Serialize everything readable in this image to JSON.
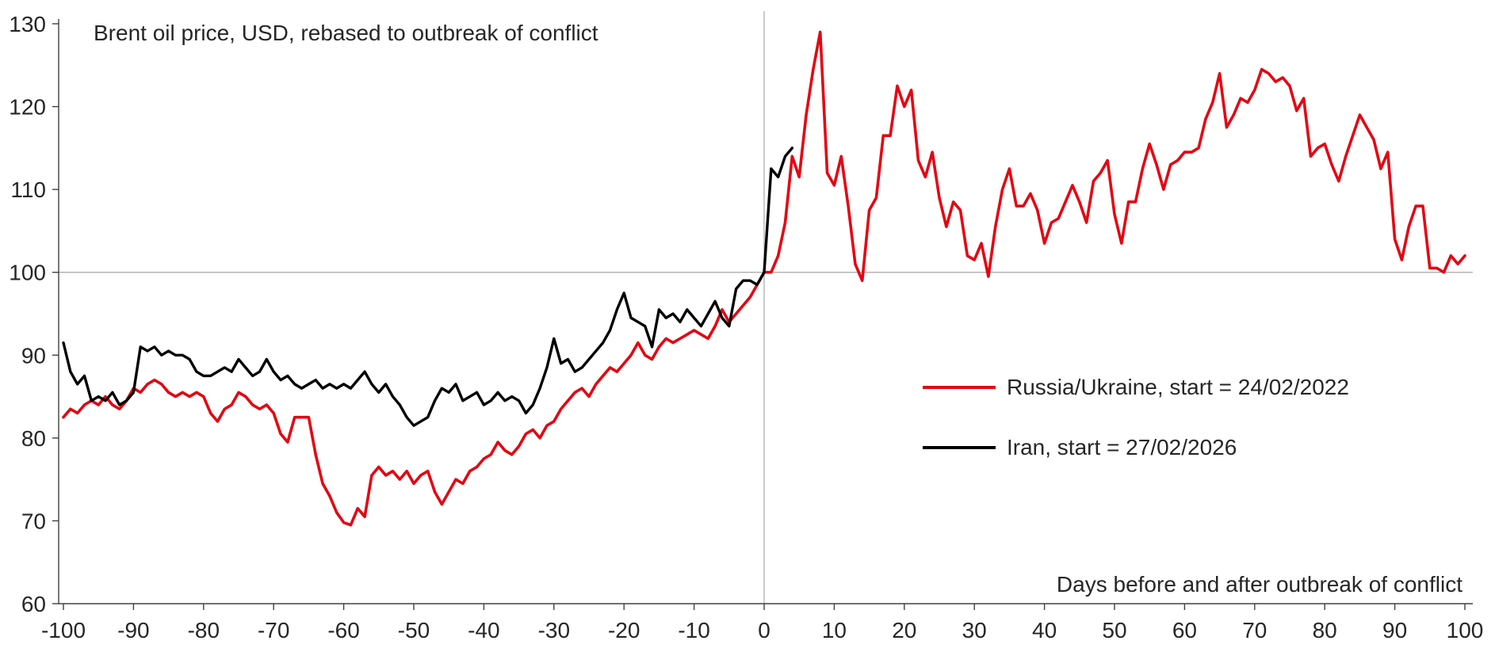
{
  "chart_data": {
    "type": "line",
    "title": "Brent oil price, USD, rebased to outbreak of conflict",
    "xlabel": "Days before and after outbreak of conflict",
    "ylabel": "",
    "xlim": [
      -100,
      100
    ],
    "ylim": [
      60,
      130
    ],
    "grid": "single horizontal gridline at 100, vertical reference line at 0",
    "baseline_value": 100,
    "zero_line_x": 0,
    "legend_position": "center-right",
    "colors": {
      "axis": "#404040",
      "gridline": "#a6a6a6",
      "zero_line": "#a6a6a6",
      "text": "#262626"
    },
    "x_axis": {
      "min": -100,
      "max": 100,
      "tick_step": 10,
      "ticks": [
        -100,
        -90,
        -80,
        -70,
        -60,
        -50,
        -40,
        -30,
        -20,
        -10,
        0,
        10,
        20,
        30,
        40,
        50,
        60,
        70,
        80,
        90,
        100
      ]
    },
    "y_axis": {
      "min": 60,
      "max": 130,
      "tick_step": 10,
      "ticks": [
        60,
        70,
        80,
        90,
        100,
        110,
        120,
        130
      ]
    },
    "series": [
      {
        "name": "Russia/Ukraine, start = 24/02/2022",
        "color": "#e30613",
        "stroke_width": 3.6,
        "x_start": -100,
        "x_step": 1,
        "values": [
          82.5,
          83.5,
          83.0,
          84.0,
          84.5,
          84.0,
          85.0,
          84.0,
          83.5,
          84.5,
          86.0,
          85.5,
          86.5,
          87.0,
          86.5,
          85.5,
          85.0,
          85.5,
          85.0,
          85.5,
          85.0,
          83.0,
          82.0,
          83.5,
          84.0,
          85.5,
          85.0,
          84.0,
          83.5,
          84.0,
          83.0,
          80.5,
          79.5,
          82.5,
          82.5,
          82.5,
          78.0,
          74.5,
          73.0,
          71.0,
          69.8,
          69.5,
          71.5,
          70.5,
          75.5,
          76.5,
          75.5,
          76.0,
          75.0,
          76.0,
          74.5,
          75.5,
          76.0,
          73.5,
          72.0,
          73.5,
          75.0,
          74.5,
          76.0,
          76.5,
          77.5,
          78.0,
          79.5,
          78.5,
          78.0,
          79.0,
          80.5,
          81.0,
          80.0,
          81.5,
          82.0,
          83.5,
          84.5,
          85.5,
          86.0,
          85.0,
          86.5,
          87.5,
          88.5,
          88.0,
          89.0,
          90.0,
          91.5,
          90.0,
          89.5,
          91.0,
          92.0,
          91.5,
          92.0,
          92.5,
          93.0,
          92.5,
          92.0,
          93.5,
          95.5,
          94.0,
          95.0,
          96.0,
          97.0,
          98.5,
          100.0,
          100.0,
          102.0,
          106.0,
          114.0,
          111.5,
          119.0,
          124.5,
          129.0,
          112.0,
          110.5,
          114.0,
          108.0,
          101.0,
          99.0,
          107.5,
          109.0,
          116.5,
          116.5,
          122.5,
          120.0,
          122.0,
          113.5,
          111.5,
          114.5,
          109.0,
          105.5,
          108.5,
          107.5,
          102.0,
          101.5,
          103.5,
          99.5,
          105.5,
          110.0,
          112.5,
          108.0,
          108.0,
          109.5,
          107.5,
          103.5,
          106.0,
          106.5,
          108.5,
          110.5,
          108.5,
          106.0,
          111.0,
          112.0,
          113.5,
          107.0,
          103.5,
          108.5,
          108.5,
          112.5,
          115.5,
          113.0,
          110.0,
          113.0,
          113.5,
          114.5,
          114.5,
          115.0,
          118.5,
          120.5,
          124.0,
          117.5,
          119.0,
          121.0,
          120.5,
          122.0,
          124.5,
          124.0,
          123.0,
          123.5,
          122.5,
          119.5,
          121.0,
          114.0,
          115.0,
          115.5,
          113.0,
          111.0,
          114.0,
          116.5,
          119.0,
          117.5,
          116.0,
          112.5,
          114.5,
          104.0,
          101.5,
          105.5,
          108.0,
          108.0,
          100.5,
          100.5,
          100.0,
          102.0,
          101.0,
          102.0
        ]
      },
      {
        "name": "Iran, start = 27/02/2026",
        "color": "#000000",
        "stroke_width": 3.4,
        "x_start": -100,
        "x_step": 1,
        "values": [
          91.5,
          88.0,
          86.5,
          87.5,
          84.5,
          85.0,
          84.5,
          85.5,
          84.0,
          84.5,
          85.5,
          91.0,
          90.5,
          91.0,
          90.0,
          90.5,
          90.0,
          90.0,
          89.5,
          88.0,
          87.5,
          87.5,
          88.0,
          88.5,
          88.0,
          89.5,
          88.5,
          87.5,
          88.0,
          89.5,
          88.0,
          87.0,
          87.5,
          86.5,
          86.0,
          86.5,
          87.0,
          86.0,
          86.5,
          86.0,
          86.5,
          86.0,
          87.0,
          88.0,
          86.5,
          85.5,
          86.5,
          85.0,
          84.0,
          82.5,
          81.5,
          82.0,
          82.5,
          84.5,
          86.0,
          85.5,
          86.5,
          84.5,
          85.0,
          85.5,
          84.0,
          84.5,
          85.5,
          84.5,
          85.0,
          84.5,
          83.0,
          84.0,
          86.0,
          88.5,
          92.0,
          89.0,
          89.5,
          88.0,
          88.5,
          89.5,
          90.5,
          91.5,
          93.0,
          95.5,
          97.5,
          94.5,
          94.0,
          93.5,
          91.0,
          95.5,
          94.5,
          95.0,
          94.0,
          95.5,
          94.5,
          93.5,
          95.0,
          96.5,
          94.5,
          93.5,
          98.0,
          99.0,
          99.0,
          98.5,
          100.0,
          112.5,
          111.5,
          114.0,
          115.0
        ]
      }
    ]
  }
}
